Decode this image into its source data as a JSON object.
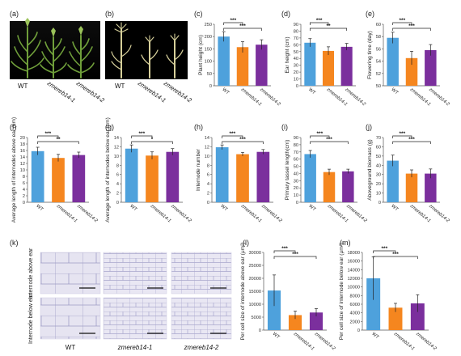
{
  "panel_labels": [
    "(a)",
    "(b)",
    "(c)",
    "(d)",
    "(e)",
    "(f)",
    "(g)",
    "(h)",
    "(i)",
    "(j)",
    "(k)",
    "(l)",
    "(m)"
  ],
  "photo_labels": {
    "a": [
      "WT",
      "zmereb14-1",
      "zmereb14-2"
    ],
    "b": [
      "WT",
      "zmereb14-1",
      "zmereb14-2"
    ]
  },
  "micro": {
    "row_labels": [
      "Internode above ear",
      "Internode below ear"
    ],
    "col_labels": [
      "WT",
      "zmereb14-1",
      "zmereb14-2"
    ]
  },
  "colors": {
    "WT": "#4ea1dc",
    "zmereb14-1": "#f5861f",
    "zmereb14-2": "#7b2f9d"
  },
  "chart_data": [
    {
      "id": "c",
      "type": "bar",
      "categories": [
        "WT",
        "zmereb14-1",
        "zmereb14-2"
      ],
      "values": [
        200,
        157,
        167
      ],
      "errors": [
        20,
        22,
        20
      ],
      "ylabel": "Plant height (cm)",
      "ylim": [
        0,
        250
      ],
      "ticks": [
        0,
        50,
        100,
        150,
        200,
        250
      ],
      "significance": [
        {
          "pair": [
            0,
            1
          ],
          "label": "***"
        },
        {
          "pair": [
            0,
            2
          ],
          "label": "***"
        }
      ]
    },
    {
      "id": "d",
      "type": "bar",
      "categories": [
        "WT",
        "zmereb14-1",
        "zmereb14-2"
      ],
      "values": [
        63,
        51,
        57
      ],
      "errors": [
        6,
        6,
        5
      ],
      "ylabel": "Ear height (cm)",
      "ylim": [
        0,
        90
      ],
      "ticks": [
        0,
        10,
        20,
        30,
        40,
        50,
        60,
        70,
        80,
        90
      ],
      "significance": [
        {
          "pair": [
            0,
            1
          ],
          "label": "***"
        },
        {
          "pair": [
            0,
            2
          ],
          "label": "**"
        }
      ]
    },
    {
      "id": "e",
      "type": "bar",
      "categories": [
        "WT",
        "zmereb14-1",
        "zmereb14-2"
      ],
      "values": [
        57.8,
        54.5,
        55.8
      ],
      "errors": [
        0.9,
        1.1,
        0.9
      ],
      "ylabel": "Flowering time (day)",
      "ylim": [
        50,
        60
      ],
      "ticks": [
        50,
        52,
        54,
        56,
        58,
        60
      ],
      "significance": [
        {
          "pair": [
            0,
            1
          ],
          "label": "***"
        },
        {
          "pair": [
            0,
            2
          ],
          "label": "***"
        }
      ]
    },
    {
      "id": "f",
      "type": "bar",
      "categories": [
        "WT",
        "zmereb14-1",
        "zmereb14-2"
      ],
      "values": [
        15.8,
        13.7,
        14.6
      ],
      "errors": [
        1.2,
        1.1,
        0.9
      ],
      "ylabel": "Average length of internodes above ear (cm)",
      "ylim": [
        0,
        20
      ],
      "ticks": [
        0,
        2,
        4,
        6,
        8,
        10,
        12,
        14,
        16,
        18,
        20
      ],
      "significance": [
        {
          "pair": [
            0,
            1
          ],
          "label": "***"
        },
        {
          "pair": [
            0,
            2
          ],
          "label": "**"
        }
      ]
    },
    {
      "id": "g",
      "type": "bar",
      "categories": [
        "WT",
        "zmereb14-1",
        "zmereb14-2"
      ],
      "values": [
        11.6,
        10.1,
        10.9
      ],
      "errors": [
        0.8,
        0.8,
        0.7
      ],
      "ylabel": "Average length of internodes below ear (cm)",
      "ylim": [
        0,
        14
      ],
      "ticks": [
        0,
        2,
        4,
        6,
        8,
        10,
        12,
        14
      ],
      "significance": [
        {
          "pair": [
            0,
            1
          ],
          "label": "***"
        },
        {
          "pair": [
            0,
            2
          ],
          "label": "*"
        }
      ]
    },
    {
      "id": "h",
      "type": "bar",
      "categories": [
        "WT",
        "zmereb14-1",
        "zmereb14-2"
      ],
      "values": [
        11.9,
        10.4,
        10.9
      ],
      "errors": [
        0.5,
        0.4,
        0.5
      ],
      "ylabel": "Internode number",
      "ylim": [
        0,
        14
      ],
      "ticks": [
        0,
        2,
        4,
        6,
        8,
        10,
        12,
        14
      ],
      "significance": [
        {
          "pair": [
            0,
            1
          ],
          "label": "***"
        },
        {
          "pair": [
            0,
            2
          ],
          "label": "***"
        }
      ]
    },
    {
      "id": "i",
      "type": "bar",
      "categories": [
        "WT",
        "zmereb14-1",
        "zmereb14-2"
      ],
      "values": [
        67,
        42,
        43
      ],
      "errors": [
        5,
        4,
        3
      ],
      "ylabel": "Primary tassel length(cm)",
      "ylim": [
        0,
        90
      ],
      "ticks": [
        0,
        10,
        20,
        30,
        40,
        50,
        60,
        70,
        80,
        90
      ],
      "significance": [
        {
          "pair": [
            0,
            1
          ],
          "label": "***"
        },
        {
          "pair": [
            0,
            2
          ],
          "label": "***"
        }
      ]
    },
    {
      "id": "j",
      "type": "bar",
      "categories": [
        "WT",
        "zmereb14-1",
        "zmereb14-2"
      ],
      "values": [
        45,
        31,
        31
      ],
      "errors": [
        6,
        4,
        5
      ],
      "ylabel": "Aboveground biomass (g)",
      "ylim": [
        0,
        70
      ],
      "ticks": [
        0,
        10,
        20,
        30,
        40,
        50,
        60,
        70
      ],
      "significance": [
        {
          "pair": [
            0,
            1
          ],
          "label": "***"
        },
        {
          "pair": [
            0,
            2
          ],
          "label": "***"
        }
      ]
    },
    {
      "id": "l",
      "type": "bar",
      "categories": [
        "WT",
        "zmereb14-1",
        "zmereb14-2"
      ],
      "values": [
        15300,
        5800,
        6800
      ],
      "errors": [
        6000,
        1500,
        1500
      ],
      "ylabel": "Per cell size of internode above ear (μm²)",
      "ylim": [
        0,
        30000
      ],
      "ticks": [
        0,
        5000,
        10000,
        15000,
        20000,
        25000,
        30000
      ],
      "significance": [
        {
          "pair": [
            0,
            1
          ],
          "label": "***"
        },
        {
          "pair": [
            0,
            2
          ],
          "label": "***"
        }
      ]
    },
    {
      "id": "m",
      "type": "bar",
      "categories": [
        "WT",
        "zmereb14-1",
        "zmereb14-2"
      ],
      "values": [
        12000,
        5200,
        6200
      ],
      "errors": [
        5000,
        1000,
        2000
      ],
      "ylabel": "Per cell size of internode below ear (μm²)",
      "ylim": [
        0,
        18000
      ],
      "ticks": [
        0,
        2000,
        4000,
        6000,
        8000,
        10000,
        12000,
        14000,
        16000,
        18000
      ],
      "significance": [
        {
          "pair": [
            0,
            1
          ],
          "label": "***"
        },
        {
          "pair": [
            0,
            2
          ],
          "label": "***"
        }
      ]
    }
  ]
}
